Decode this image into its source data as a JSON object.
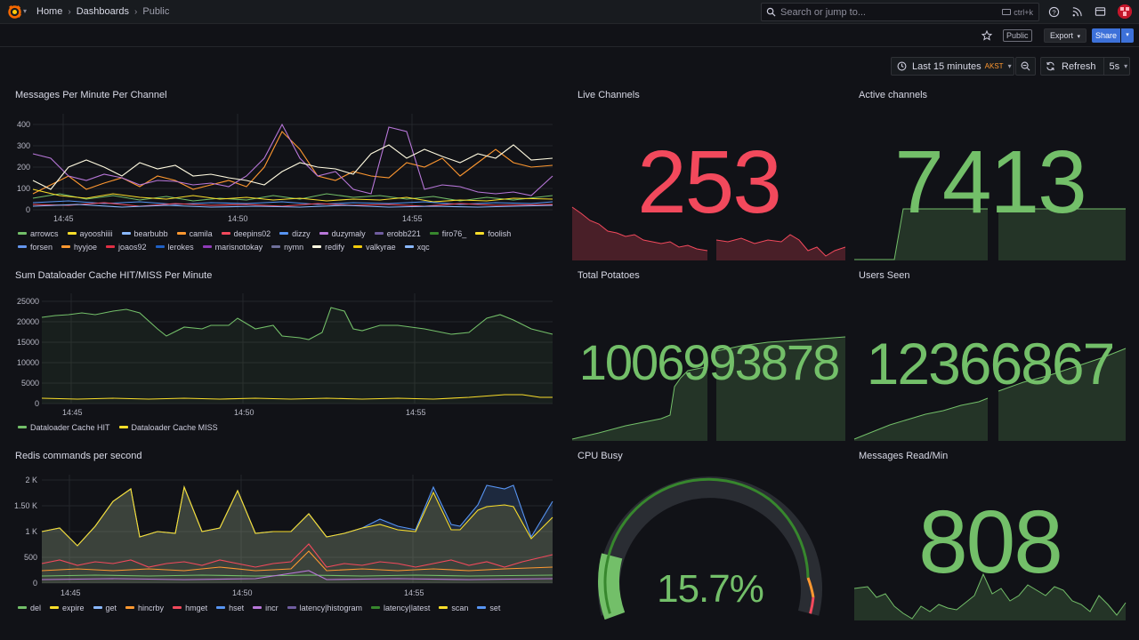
{
  "topbar": {
    "breadcrumb": [
      "Home",
      "Dashboards",
      "Public"
    ],
    "search_placeholder": "Search or jump to...",
    "shortcut": "ctrl+k"
  },
  "toolbar": {
    "public_tag": "Public",
    "export_label": "Export",
    "share_label": "Share",
    "time_range": "Last 15 minutes",
    "timezone": "AKST",
    "refresh_label": "Refresh",
    "refresh_interval": "5s"
  },
  "colors": {
    "green": "#73bf69",
    "red": "#f2495c",
    "yellow": "#fade2a",
    "orange": "#ff9830",
    "blue": "#5794f2"
  },
  "panels": {
    "messages_per_minute": {
      "title": "Messages Per Minute Per Channel",
      "yticks": [
        "400",
        "300",
        "200",
        "100",
        "0"
      ],
      "xticks": [
        "14:45",
        "14:50",
        "14:55"
      ],
      "legend": [
        {
          "name": "arrowcs",
          "color": "#73bf69"
        },
        {
          "name": "ayooshiiii",
          "color": "#fade2a"
        },
        {
          "name": "bearbubb",
          "color": "#8ab8ff"
        },
        {
          "name": "camila",
          "color": "#ff9830"
        },
        {
          "name": "deepins02",
          "color": "#f2495c"
        },
        {
          "name": "dizzy",
          "color": "#5794f2"
        },
        {
          "name": "duzymaly",
          "color": "#b877d9"
        },
        {
          "name": "erobb221",
          "color": "#705da0"
        },
        {
          "name": "firo76_",
          "color": "#37872d"
        },
        {
          "name": "foolish",
          "color": "#fade2a"
        },
        {
          "name": "forsen",
          "color": "#6495ed"
        },
        {
          "name": "hyyjoe",
          "color": "#ff9830"
        },
        {
          "name": "joaos92",
          "color": "#e02f44"
        },
        {
          "name": "lerokes",
          "color": "#1f60c4"
        },
        {
          "name": "marisnotokay",
          "color": "#8f3bb8"
        },
        {
          "name": "nymn",
          "color": "#6e6f9a"
        },
        {
          "name": "redify",
          "color": "#fffae0"
        },
        {
          "name": "valkyrae",
          "color": "#f2cc0c"
        },
        {
          "name": "xqc",
          "color": "#8ab8ff"
        }
      ]
    },
    "dataloader_cache": {
      "title": "Sum Dataloader Cache HIT/MISS Per Minute",
      "yticks": [
        "25000",
        "20000",
        "15000",
        "10000",
        "5000",
        "0"
      ],
      "xticks": [
        "14:45",
        "14:50",
        "14:55"
      ],
      "legend": [
        {
          "name": "Dataloader Cache HIT",
          "color": "#73bf69"
        },
        {
          "name": "Dataloader Cache MISS",
          "color": "#fade2a"
        }
      ]
    },
    "redis_commands": {
      "title": "Redis commands per second",
      "yticks": [
        "2 K",
        "1.50 K",
        "1 K",
        "500",
        "0"
      ],
      "xticks": [
        "14:45",
        "14:50",
        "14:55"
      ],
      "legend": [
        {
          "name": "del",
          "color": "#73bf69"
        },
        {
          "name": "expire",
          "color": "#fade2a"
        },
        {
          "name": "get",
          "color": "#8ab8ff"
        },
        {
          "name": "hincrby",
          "color": "#ff9830"
        },
        {
          "name": "hmget",
          "color": "#f2495c"
        },
        {
          "name": "hset",
          "color": "#5794f2"
        },
        {
          "name": "incr",
          "color": "#b877d9"
        },
        {
          "name": "latency|histogram",
          "color": "#705da0"
        },
        {
          "name": "latency|latest",
          "color": "#37872d"
        },
        {
          "name": "scan",
          "color": "#fade2a"
        },
        {
          "name": "set",
          "color": "#5794f2"
        }
      ]
    },
    "live_channels": {
      "title": "Live Channels",
      "value": "253",
      "color": "#f2495c"
    },
    "active_channels": {
      "title": "Active channels",
      "value": "7413",
      "color": "#73bf69"
    },
    "total_potatoes": {
      "title": "Total Potatoes",
      "value": "1006993878",
      "color": "#73bf69"
    },
    "users_seen": {
      "title": "Users Seen",
      "value": "12366867",
      "color": "#73bf69"
    },
    "cpu_busy": {
      "title": "CPU Busy",
      "value": "15.7%",
      "percent": 15.7,
      "color": "#73bf69"
    },
    "messages_read": {
      "title": "Messages Read/Min",
      "value": "808",
      "color": "#73bf69"
    }
  }
}
